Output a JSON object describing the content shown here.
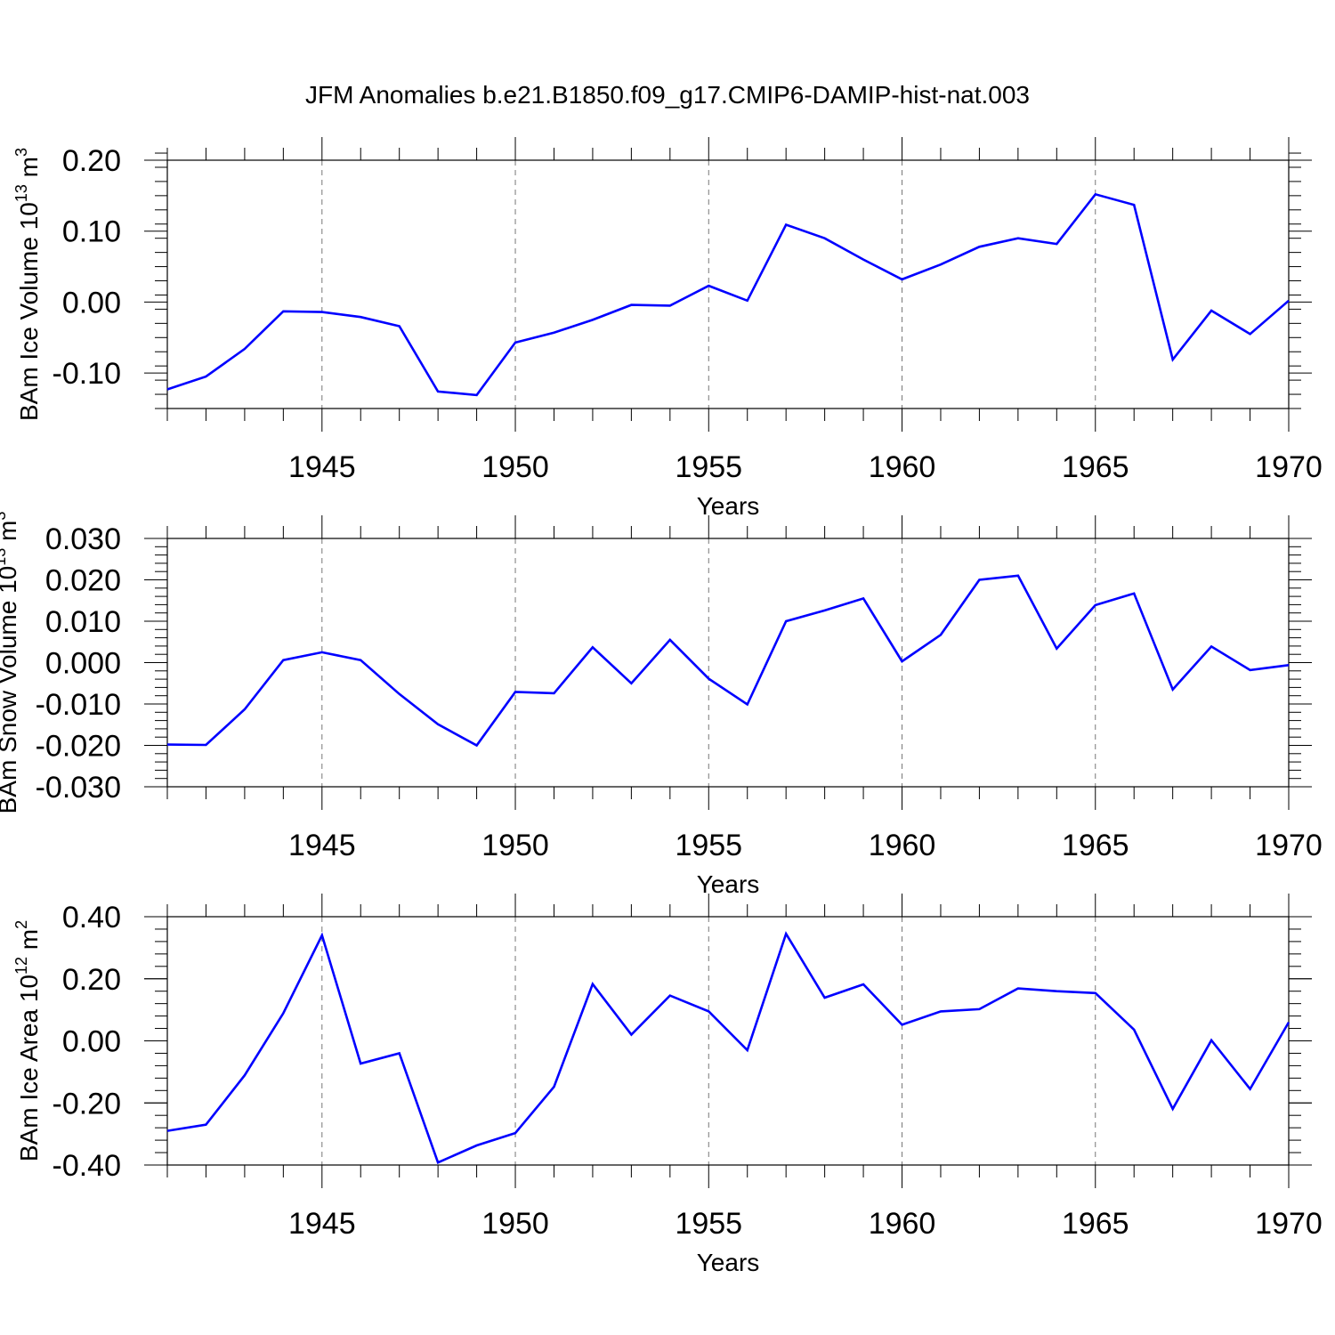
{
  "title": "JFM Anomalies b.e21.B1850.f09_g17.CMIP6-DAMIP-hist-nat.003",
  "line_color": "#0000ff",
  "chart_data": [
    {
      "type": "line",
      "ylabel_main": "BAm Ice Volume 10",
      "ylabel_exp": "13",
      "ylabel_unit": " m",
      "ylabel_unit_exp": "3",
      "xlabel": "Years",
      "xlim": [
        1941,
        1970
      ],
      "ylim": [
        -0.15,
        0.2
      ],
      "y_ticks": [
        -0.1,
        0.0,
        0.1,
        0.2
      ],
      "y_tick_labels": [
        "-0.10",
        "0.00",
        "0.10",
        "0.20"
      ],
      "y_minor_step": 0.02,
      "x_ticks": [
        1945,
        1950,
        1955,
        1960,
        1965,
        1970
      ],
      "x_tick_labels": [
        "1945",
        "1950",
        "1955",
        "1960",
        "1965",
        "1970"
      ],
      "grid": "vertical dashed at major x ticks",
      "x": [
        1941,
        1942,
        1943,
        1944,
        1945,
        1946,
        1947,
        1948,
        1949,
        1950,
        1951,
        1952,
        1953,
        1954,
        1955,
        1956,
        1957,
        1958,
        1959,
        1960,
        1961,
        1962,
        1963,
        1964,
        1965,
        1966,
        1967,
        1968,
        1969,
        1970
      ],
      "values": [
        -0.123,
        -0.105,
        -0.066,
        -0.013,
        -0.014,
        -0.021,
        -0.034,
        -0.126,
        -0.131,
        -0.057,
        -0.043,
        -0.025,
        -0.004,
        -0.005,
        0.023,
        0.002,
        0.109,
        0.09,
        0.06,
        0.032,
        0.053,
        0.078,
        0.09,
        0.082,
        0.152,
        0.137,
        -0.081,
        -0.012,
        -0.045,
        0.002
      ]
    },
    {
      "type": "line",
      "ylabel_main": "BAm Snow Volume 10",
      "ylabel_exp": "13",
      "ylabel_unit": " m",
      "ylabel_unit_exp": "3",
      "xlabel": "Years",
      "xlim": [
        1941,
        1970
      ],
      "ylim": [
        -0.03,
        0.03
      ],
      "y_ticks": [
        -0.03,
        -0.02,
        -0.01,
        0.0,
        0.01,
        0.02,
        0.03
      ],
      "y_tick_labels": [
        "-0.030",
        "-0.020",
        "-0.010",
        "0.000",
        "0.010",
        "0.020",
        "0.030"
      ],
      "y_minor_step": 0.002,
      "x_ticks": [
        1945,
        1950,
        1955,
        1960,
        1965,
        1970
      ],
      "x_tick_labels": [
        "1945",
        "1950",
        "1955",
        "1960",
        "1965",
        "1970"
      ],
      "grid": "vertical dashed at major x ticks",
      "x": [
        1941,
        1942,
        1943,
        1944,
        1945,
        1946,
        1947,
        1948,
        1949,
        1950,
        1951,
        1952,
        1953,
        1954,
        1955,
        1956,
        1957,
        1958,
        1959,
        1960,
        1961,
        1962,
        1963,
        1964,
        1965,
        1966,
        1967,
        1968,
        1969,
        1970
      ],
      "values": [
        -0.0198,
        -0.0199,
        -0.0113,
        0.0006,
        0.0025,
        0.0006,
        -0.0076,
        -0.0149,
        -0.02,
        -0.0071,
        -0.0074,
        0.0037,
        -0.005,
        0.0055,
        -0.0039,
        -0.0101,
        0.01,
        0.0126,
        0.0155,
        0.0003,
        0.0067,
        0.02,
        0.021,
        0.0034,
        0.0139,
        0.0167,
        -0.0065,
        0.0039,
        -0.0018,
        -0.0006
      ]
    },
    {
      "type": "line",
      "ylabel_main": "BAm Ice Area 10",
      "ylabel_exp": "12",
      "ylabel_unit": " m",
      "ylabel_unit_exp": "2",
      "xlabel": "Years",
      "xlim": [
        1941,
        1970
      ],
      "ylim": [
        -0.4,
        0.4
      ],
      "y_ticks": [
        -0.4,
        -0.2,
        0.0,
        0.2,
        0.4
      ],
      "y_tick_labels": [
        "-0.40",
        "-0.20",
        "0.00",
        "0.20",
        "0.40"
      ],
      "y_minor_step": 0.04,
      "x_ticks": [
        1945,
        1950,
        1955,
        1960,
        1965,
        1970
      ],
      "x_tick_labels": [
        "1945",
        "1950",
        "1955",
        "1960",
        "1965",
        "1970"
      ],
      "grid": "vertical dashed at major x ticks",
      "x": [
        1941,
        1942,
        1943,
        1944,
        1945,
        1946,
        1947,
        1948,
        1949,
        1950,
        1951,
        1952,
        1953,
        1954,
        1955,
        1956,
        1957,
        1958,
        1959,
        1960,
        1961,
        1962,
        1963,
        1964,
        1965,
        1966,
        1967,
        1968,
        1969,
        1970
      ],
      "values": [
        -0.29,
        -0.27,
        -0.111,
        0.089,
        0.34,
        -0.073,
        -0.04,
        -0.392,
        -0.337,
        -0.297,
        -0.148,
        0.183,
        0.02,
        0.146,
        0.095,
        -0.03,
        0.345,
        0.139,
        0.182,
        0.052,
        0.095,
        0.102,
        0.169,
        0.16,
        0.154,
        0.036,
        -0.219,
        0.002,
        -0.155,
        0.06
      ]
    }
  ]
}
